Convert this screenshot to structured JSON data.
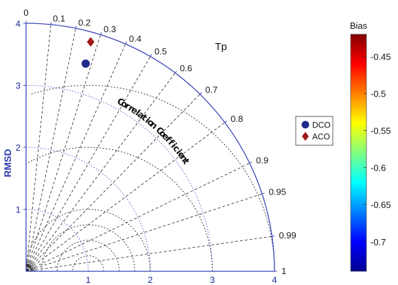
{
  "chart_data": {
    "type": "scatter",
    "subtype": "taylor-diagram",
    "title": "Tp",
    "ylabel": "RMSD",
    "arc_label": "Correlation Coefficient",
    "radial_ticks": [
      "1",
      "2",
      "3",
      "4"
    ],
    "radial_range": [
      0,
      4
    ],
    "correlation_ticks": [
      "0",
      "0.1",
      "0.2",
      "0.3",
      "0.4",
      "0.5",
      "0.6",
      "0.7",
      "0.8",
      "0.9",
      "0.95",
      "0.99",
      "1"
    ],
    "correlation_values": [
      0,
      0.1,
      0.2,
      0.3,
      0.4,
      0.5,
      0.6,
      0.7,
      0.8,
      0.9,
      0.95,
      0.99,
      1
    ],
    "rmsd_arcs": [
      0.25,
      0.5,
      0.75,
      1.0,
      2.0,
      3.0
    ],
    "reference_std": 1.0,
    "series": [
      {
        "name": "DCO",
        "marker": "circle",
        "x": 0.96,
        "y": 3.35,
        "color": "#1f2a8c"
      },
      {
        "name": "ACO",
        "marker": "diamond",
        "x": 1.04,
        "y": 3.7,
        "color": "#a01818"
      }
    ],
    "colorbar": {
      "title": "Bias",
      "ticks": [
        "-0.45",
        "-0.5",
        "-0.55",
        "-0.6",
        "-0.65",
        "-0.7"
      ],
      "tick_values": [
        -0.45,
        -0.5,
        -0.55,
        -0.6,
        -0.65,
        -0.7
      ],
      "range": [
        -0.74,
        -0.42
      ],
      "colormap": [
        "#00008f",
        "#0000ff",
        "#0080ff",
        "#00ffff",
        "#80ff80",
        "#ffff00",
        "#ff8000",
        "#ff0000",
        "#800000"
      ]
    },
    "colors": {
      "axis": "#3b45b8",
      "grid": "#222222",
      "arc_grid": "#5a5acf"
    }
  }
}
